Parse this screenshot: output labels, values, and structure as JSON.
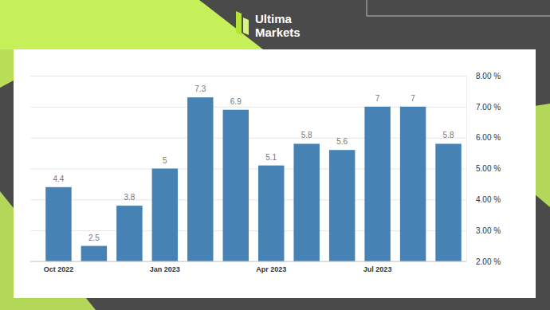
{
  "logo": {
    "lines": [
      "Ultima",
      "Markets"
    ]
  },
  "chart_data": {
    "type": "bar",
    "categories": [
      "Oct 2022",
      null,
      null,
      "Jan 2023",
      null,
      null,
      "Apr 2023",
      null,
      null,
      "Jul 2023",
      null,
      null
    ],
    "values": [
      4.4,
      2.5,
      3.8,
      5,
      7.3,
      6.9,
      5.1,
      5.8,
      5.6,
      7,
      7,
      5.8
    ],
    "color": "#4682b4",
    "ylim": [
      2,
      8
    ],
    "yticks": [
      {
        "value": 2,
        "label": "2.00 %"
      },
      {
        "value": 3,
        "label": "3.00 %"
      },
      {
        "value": 4,
        "label": "4.00 %"
      },
      {
        "value": 5,
        "label": "5.00 %"
      },
      {
        "value": 6,
        "label": "6.00 %"
      },
      {
        "value": 7,
        "label": "7.00 %"
      },
      {
        "value": 8,
        "label": "8.00 %"
      }
    ],
    "grid": true,
    "data_labels": true
  }
}
